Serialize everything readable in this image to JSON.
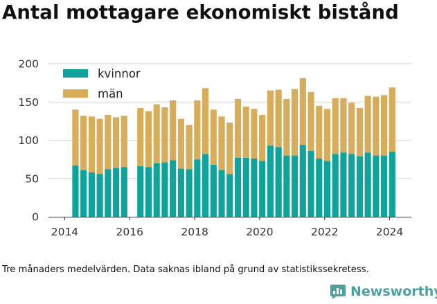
{
  "chart_data": {
    "type": "bar",
    "stacked": true,
    "title": "Antal mottagare ekonomiskt bistånd",
    "xlabel": "",
    "ylabel": "",
    "ylim": [
      0,
      200
    ],
    "yticks": [
      0,
      50,
      100,
      150,
      200
    ],
    "xticks": [
      "2014",
      "2016",
      "2018",
      "2020",
      "2022",
      "2024"
    ],
    "xrange": [
      2013.5,
      2024.67
    ],
    "grid": "horizontal",
    "legend_position": "top-left",
    "x": [
      2014.33,
      2014.58,
      2014.83,
      2015.08,
      2015.33,
      2015.58,
      2015.83,
      2016.33,
      2016.58,
      2016.83,
      2017.08,
      2017.33,
      2017.58,
      2017.83,
      2018.08,
      2018.33,
      2018.58,
      2018.83,
      2019.08,
      2019.33,
      2019.58,
      2019.83,
      2020.08,
      2020.33,
      2020.58,
      2020.83,
      2021.08,
      2021.33,
      2021.58,
      2021.83,
      2022.08,
      2022.33,
      2022.58,
      2022.83,
      2023.08,
      2023.33,
      2023.58,
      2023.83,
      2024.08
    ],
    "series": [
      {
        "name": "kvinnor",
        "color": "#0fa39b",
        "values": [
          67,
          61,
          58,
          56,
          62,
          64,
          65,
          66,
          65,
          70,
          71,
          74,
          63,
          62,
          75,
          82,
          68,
          61,
          56,
          77,
          77,
          76,
          73,
          93,
          91,
          80,
          80,
          94,
          86,
          76,
          73,
          82,
          84,
          82,
          79,
          84,
          80,
          80,
          85
        ]
      },
      {
        "name": "män",
        "color": "#d7ac5b",
        "values": [
          73,
          71,
          73,
          72,
          71,
          66,
          67,
          76,
          73,
          77,
          72,
          78,
          65,
          58,
          77,
          86,
          72,
          70,
          67,
          77,
          67,
          65,
          60,
          72,
          75,
          74,
          87,
          87,
          77,
          69,
          68,
          73,
          71,
          67,
          63,
          74,
          77,
          79,
          84
        ]
      }
    ],
    "footnote": "Tre månaders medelvärden. Data saknas ibland på grund av statistikssekretess.",
    "source": "Newsworthy"
  }
}
